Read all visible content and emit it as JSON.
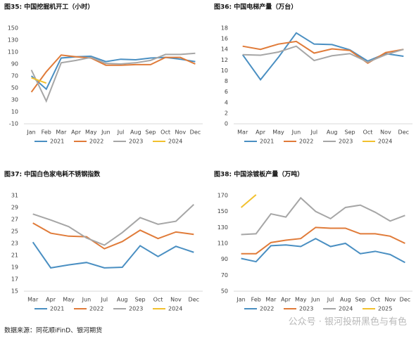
{
  "chart_data": [
    {
      "type": "line",
      "title": "图35:  中国挖掘机开工（小时）",
      "categories": [
        "Jan",
        "Feb",
        "Mar",
        "Apr",
        "May",
        "Jun",
        "Jul",
        "Aug",
        "Sep",
        "Oct",
        "Nov",
        "Dec"
      ],
      "ylim": [
        -10,
        150
      ],
      "yticks": [
        -10,
        10,
        30,
        50,
        70,
        90,
        110,
        130,
        150
      ],
      "series": [
        {
          "name": "2021",
          "color": "#4a8fc2",
          "values": [
            70,
            48,
            100,
            102,
            103,
            94,
            98,
            97,
            100,
            101,
            98,
            94
          ]
        },
        {
          "name": "2022",
          "color": "#e07b39",
          "values": [
            43,
            77,
            105,
            102,
            100,
            88,
            88,
            89,
            89,
            101,
            101,
            90
          ]
        },
        {
          "name": "2023",
          "color": "#a6a6a6",
          "values": [
            80,
            28,
            92,
            96,
            101,
            91,
            90,
            92,
            96,
            106,
            106,
            108
          ]
        },
        {
          "name": "2024",
          "color": "#f2c12e",
          "values": [
            67,
            58,
            null,
            null,
            null,
            null,
            null,
            null,
            null,
            null,
            null,
            null
          ]
        }
      ]
    },
    {
      "type": "line",
      "title": "图36:  中国电梯产量（万台）",
      "categories": [
        "Mar",
        "Apr",
        "May",
        "Jun",
        "Jul",
        "Aug",
        "Sep",
        "Oct",
        "Nov",
        "Dec"
      ],
      "ylim": [
        0,
        18
      ],
      "yticks": [
        0,
        2,
        4,
        6,
        8,
        10,
        12,
        14,
        16,
        18
      ],
      "series": [
        {
          "name": "2021",
          "color": "#4a8fc2",
          "values": [
            13,
            8.3,
            12.5,
            17.1,
            15,
            14.9,
            13.9,
            11.8,
            13.2,
            12.7
          ]
        },
        {
          "name": "2022",
          "color": "#e07b39",
          "values": [
            14.6,
            14,
            15,
            15.5,
            13.3,
            14.1,
            13.8,
            11.4,
            13.4,
            14
          ]
        },
        {
          "name": "2023",
          "color": "#a6a6a6",
          "values": [
            13,
            12.9,
            13.5,
            14.6,
            11.9,
            12.8,
            13.2,
            11.6,
            13,
            14
          ]
        },
        {
          "name": "2024",
          "color": "#f2c12e",
          "values": [
            null,
            null,
            null,
            null,
            null,
            null,
            null,
            null,
            null,
            null
          ]
        }
      ]
    },
    {
      "type": "line",
      "title": "图37:  中国白色家电耗不锈钢指数",
      "categories": [
        "Mar",
        "Apr",
        "May",
        "Jun",
        "Jul",
        "Aug",
        "Sep",
        "Oct",
        "Nov",
        "Dec"
      ],
      "ylim": [
        15,
        31
      ],
      "yticks": [
        15,
        17,
        19,
        21,
        23,
        25,
        27,
        29,
        31
      ],
      "series": [
        {
          "name": "2021",
          "color": "#4a8fc2",
          "values": [
            23.2,
            18.9,
            19.4,
            19.8,
            18.9,
            19,
            22.6,
            20.8,
            22.5,
            21.5
          ]
        },
        {
          "name": "2022",
          "color": "#e07b39",
          "values": [
            26.4,
            24.7,
            24.2,
            24.1,
            22.1,
            23.3,
            25.2,
            23.8,
            24.9,
            24.5
          ]
        },
        {
          "name": "2023",
          "color": "#a6a6a6",
          "values": [
            27.9,
            26.9,
            25.8,
            23.9,
            22.7,
            24.8,
            27.3,
            26.2,
            26.7,
            29.5
          ]
        },
        {
          "name": "2024",
          "color": "#f2c12e",
          "values": [
            null,
            null,
            null,
            null,
            null,
            null,
            null,
            null,
            null,
            null
          ]
        }
      ]
    },
    {
      "type": "line",
      "title": "图38:  中国涂镀板产量（万吨）",
      "categories": [
        "Jan",
        "Feb",
        "Mar",
        "Apr",
        "May",
        "Jun",
        "Jul",
        "Aug",
        "Sep",
        "Oct",
        "Nov",
        "Dec"
      ],
      "ylim": [
        50,
        170
      ],
      "yticks": [
        50,
        70,
        90,
        110,
        130,
        150,
        170
      ],
      "series": [
        {
          "name": "2022",
          "color": "#4a8fc2",
          "values": [
            91,
            87,
            107,
            108,
            106,
            116,
            106,
            110,
            97,
            100,
            96,
            86
          ]
        },
        {
          "name": "2023",
          "color": "#e07b39",
          "values": [
            97,
            97,
            111,
            114,
            116,
            130,
            129,
            129,
            122,
            122,
            119,
            110
          ]
        },
        {
          "name": "2024",
          "color": "#a6a6a6",
          "values": [
            121,
            122,
            147,
            143,
            167,
            150,
            141,
            155,
            158,
            149,
            138,
            145
          ]
        },
        {
          "name": "2025",
          "color": "#f2c12e",
          "values": [
            155,
            171,
            null,
            null,
            null,
            null,
            null,
            null,
            null,
            null,
            null,
            null
          ]
        }
      ]
    }
  ],
  "source": "数据来源：同花顺iFinD、银河期货",
  "watermark": "公众号 · 银河投研黑色与有色"
}
